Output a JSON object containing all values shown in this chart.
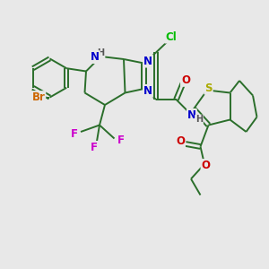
{
  "bg_color": "#e8e8e8",
  "bond_color": "#2a6e2a",
  "bond_width": 1.4,
  "atom_colors": {
    "Br": "#cc6600",
    "N": "#0000cc",
    "O": "#cc0000",
    "S": "#aaaa00",
    "F": "#cc00cc",
    "Cl": "#00bb00",
    "H": "#555555",
    "C": "#2a6e2a"
  },
  "font_size": 8.5
}
